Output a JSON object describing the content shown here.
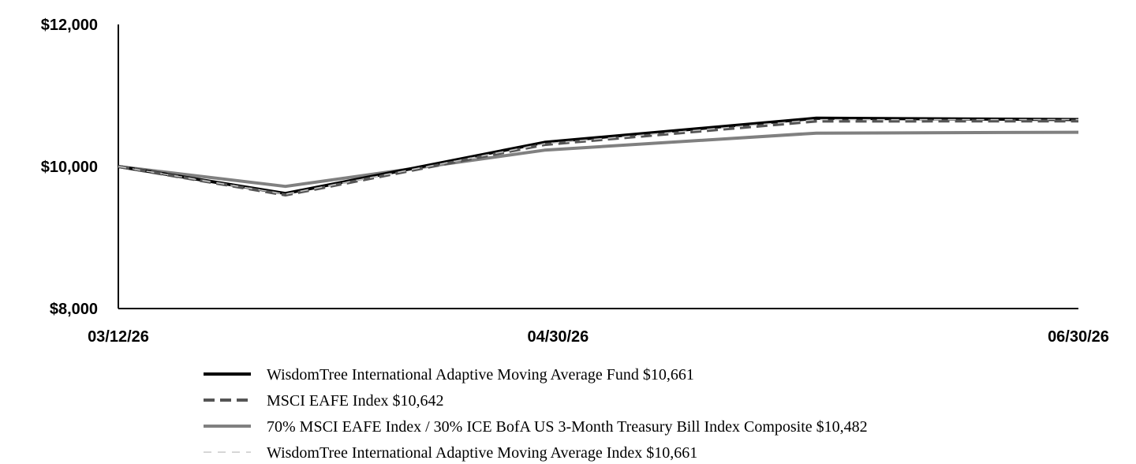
{
  "chart_data": {
    "type": "line",
    "title": "",
    "xlabel": "",
    "ylabel": "",
    "ylim": [
      8000,
      12000
    ],
    "y_ticks": [
      "$8,000",
      "$10,000",
      "$12,000"
    ],
    "x_ticks": [
      "03/12/26",
      "04/30/26",
      "06/30/26"
    ],
    "grid": false,
    "legend_position": "bottom",
    "x": [
      "03/12/26",
      "03/31/26",
      "04/30/26",
      "05/31/26",
      "06/30/26"
    ],
    "series": [
      {
        "name": "WisdomTree International Adaptive Moving Average Fund $10,661",
        "values": [
          10000,
          9620,
          10340,
          10680,
          10661
        ],
        "color": "#000000",
        "style": "solid"
      },
      {
        "name": "MSCI EAFE Index $10,642",
        "values": [
          10000,
          9600,
          10310,
          10640,
          10642
        ],
        "color": "#555555",
        "style": "dashed"
      },
      {
        "name": "70% MSCI EAFE Index / 30% ICE BofA US 3-Month Treasury Bill Index Composite $10,482",
        "values": [
          10000,
          9720,
          10230,
          10470,
          10482
        ],
        "color": "#808080",
        "style": "solid"
      },
      {
        "name": "WisdomTree International Adaptive Moving Average Index $10,661",
        "values": [
          10000,
          9610,
          10320,
          10660,
          10661
        ],
        "color": "#c8c8c8",
        "style": "dashed"
      }
    ]
  }
}
